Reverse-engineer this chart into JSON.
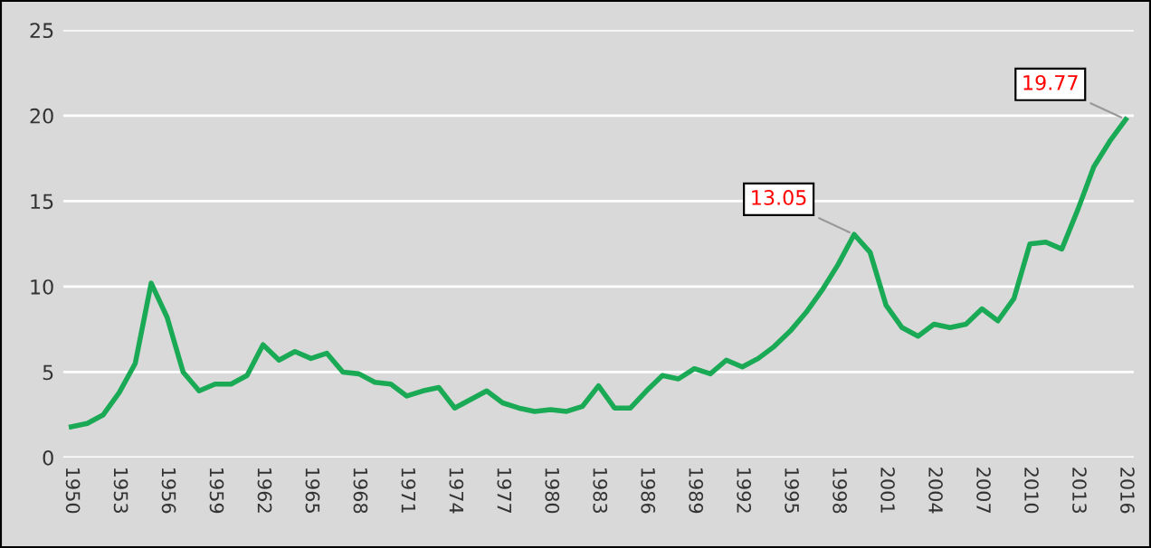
{
  "chart_data": {
    "type": "line",
    "categories": [
      "1950",
      null,
      null,
      "1953",
      null,
      null,
      "1956",
      null,
      null,
      "1959",
      null,
      null,
      "1962",
      null,
      null,
      "1965",
      null,
      null,
      "1968",
      null,
      null,
      "1971",
      null,
      null,
      "1974",
      null,
      null,
      "1977",
      null,
      null,
      "1980",
      null,
      null,
      "1983",
      null,
      null,
      "1986",
      null,
      null,
      "1989",
      null,
      null,
      "1992",
      null,
      null,
      "1995",
      null,
      null,
      "1998",
      null,
      null,
      "2001",
      null,
      null,
      "2004",
      null,
      null,
      "2007",
      null,
      null,
      "2010",
      null,
      null,
      "2013",
      null,
      null,
      "2016"
    ],
    "series": [
      {
        "color": "#1aaa55",
        "values": [
          1.8,
          2.0,
          2.5,
          3.8,
          5.5,
          10.2,
          8.2,
          5.0,
          3.9,
          4.3,
          4.3,
          4.8,
          6.6,
          5.7,
          6.2,
          5.8,
          6.1,
          5.0,
          4.9,
          4.4,
          4.3,
          3.6,
          3.9,
          4.1,
          2.9,
          3.4,
          3.9,
          3.2,
          2.9,
          2.7,
          2.8,
          2.7,
          3.0,
          4.2,
          2.9,
          2.9,
          3.9,
          4.8,
          4.6,
          5.2,
          4.9,
          5.7,
          5.3,
          5.8,
          6.5,
          7.4,
          8.5,
          9.8,
          11.3,
          13.05,
          12.0,
          8.9,
          7.6,
          7.1,
          7.8,
          7.6,
          7.8,
          8.7,
          8.0,
          9.3,
          12.5,
          12.6,
          12.2,
          14.5,
          17.0,
          18.5,
          19.77
        ],
        "value_labels": [
          null,
          null,
          null,
          null,
          null,
          null,
          null,
          null,
          null,
          null,
          null,
          null,
          null,
          null,
          null,
          null,
          null,
          null,
          null,
          null,
          null,
          null,
          null,
          null,
          null,
          null,
          null,
          null,
          null,
          null,
          null,
          null,
          null,
          null,
          null,
          null,
          null,
          null,
          null,
          null,
          null,
          null,
          null,
          null,
          null,
          null,
          null,
          null,
          null,
          "13.05",
          null,
          null,
          null,
          null,
          null,
          null,
          null,
          null,
          null,
          null,
          null,
          null,
          null,
          null,
          null,
          null,
          "19.77"
        ]
      }
    ],
    "ylim": [
      0,
      25
    ],
    "yticks": [
      0,
      5,
      10,
      15,
      20,
      25
    ],
    "grid": "y",
    "marker": "none",
    "line_style": "solid"
  }
}
